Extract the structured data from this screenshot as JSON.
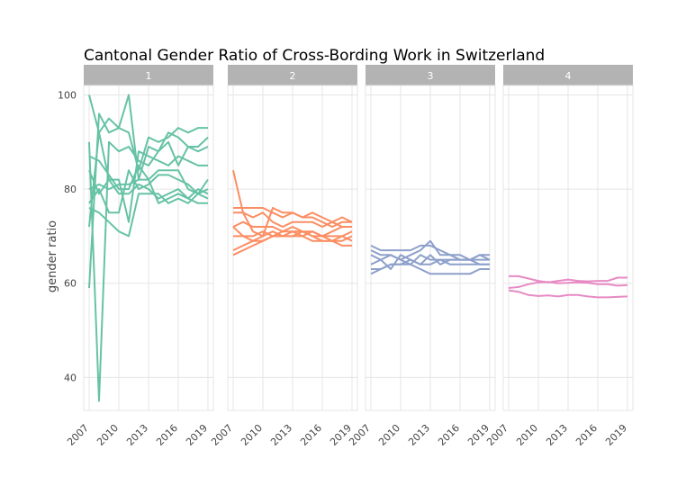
{
  "chart_data": {
    "type": "line",
    "title": "Cantonal Gender Ratio of Cross-Bording Work in Switzerland",
    "ylabel": "gender ratio",
    "xlabel": "",
    "ylim": [
      33,
      102
    ],
    "xlim": [
      2007,
      2019
    ],
    "x_ticks": [
      2007,
      2010,
      2013,
      2016,
      2019
    ],
    "y_ticks": [
      40,
      60,
      80,
      100
    ],
    "x": [
      2007,
      2008,
      2009,
      2010,
      2011,
      2012,
      2013,
      2014,
      2015,
      2016,
      2017,
      2018,
      2019
    ],
    "grid": true,
    "legend": "none",
    "panels": [
      {
        "label": "1",
        "color": "#66c2a5",
        "series": [
          {
            "values": [
              100,
              92,
              95,
              93,
              92,
              84,
              91,
              90,
              91,
              93,
              92,
              93,
              93
            ]
          },
          {
            "values": [
              59,
              96,
              92,
              93,
              100,
              82,
              89,
              88,
              92,
              91,
              89,
              89,
              91
            ]
          },
          {
            "values": [
              90,
              35,
              90,
              88,
              89,
              86,
              85,
              88,
              90,
              85,
              89,
              88,
              89
            ]
          },
          {
            "values": [
              72,
              92,
              82,
              82,
              73,
              88,
              87,
              86,
              85,
              87,
              86,
              85,
              85
            ]
          },
          {
            "values": [
              87,
              86,
              83,
              80,
              80,
              85,
              82,
              84,
              84,
              84,
              80,
              79,
              80
            ]
          },
          {
            "values": [
              77,
              80,
              75,
              75,
              84,
              80,
              81,
              83,
              83,
              82,
              81,
              79,
              82
            ]
          },
          {
            "values": [
              84,
              79,
              82,
              79,
              79,
              81,
              80,
              78,
              79,
              80,
              78,
              80,
              79
            ]
          },
          {
            "values": [
              76,
              75,
              73,
              71,
              70,
              79,
              79,
              79,
              77,
              78,
              77,
              79,
              78
            ]
          },
          {
            "values": [
              80,
              81,
              80,
              81,
              81,
              82,
              82,
              77,
              78,
              79,
              78,
              77,
              77
            ]
          }
        ]
      },
      {
        "label": "2",
        "color": "#fc8d62",
        "series": [
          {
            "values": [
              84,
              75,
              71,
              70,
              76,
              75,
              75,
              74,
              75,
              74,
              73,
              74,
              73
            ]
          },
          {
            "values": [
              76,
              76,
              76,
              76,
              75,
              74,
              75,
              74,
              74,
              73,
              72,
              73,
              73
            ]
          },
          {
            "values": [
              75,
              75,
              74,
              75,
              73,
              72,
              73,
              73,
              73,
              72,
              73,
              72,
              72
            ]
          },
          {
            "values": [
              72,
              73,
              72,
              72,
              72,
              71,
              72,
              71,
              71,
              70,
              71,
              72,
              72
            ]
          },
          {
            "values": [
              70,
              70,
              70,
              71,
              70,
              70,
              70,
              70,
              71,
              70,
              70,
              70,
              71
            ]
          },
          {
            "values": [
              66,
              67,
              68,
              69,
              70,
              71,
              71,
              70,
              69,
              69,
              69,
              69,
              70
            ]
          },
          {
            "values": [
              72,
              70,
              69,
              70,
              71,
              70,
              70,
              71,
              70,
              69,
              69,
              68,
              68
            ]
          },
          {
            "values": [
              67,
              68,
              69,
              69,
              70,
              70,
              71,
              71,
              70,
              70,
              69,
              70,
              69
            ]
          }
        ]
      },
      {
        "label": "3",
        "color": "#8da0cb",
        "series": [
          {
            "values": [
              68,
              67,
              67,
              67,
              67,
              68,
              68,
              67,
              66,
              66,
              65,
              66,
              66
            ]
          },
          {
            "values": [
              67,
              66,
              66,
              65,
              66,
              67,
              69,
              66,
              66,
              65,
              65,
              66,
              65
            ]
          },
          {
            "values": [
              66,
              65,
              66,
              65,
              64,
              66,
              65,
              65,
              65,
              65,
              65,
              65,
              65
            ]
          },
          {
            "values": [
              64,
              65,
              63,
              66,
              65,
              64,
              66,
              64,
              65,
              65,
              65,
              64,
              64
            ]
          },
          {
            "values": [
              63,
              63,
              64,
              64,
              65,
              64,
              64,
              65,
              64,
              64,
              64,
              64,
              64
            ]
          },
          {
            "values": [
              62,
              63,
              64,
              64,
              64,
              63,
              62,
              62,
              62,
              62,
              62,
              63,
              63
            ]
          }
        ]
      },
      {
        "label": "4",
        "color": "#e78ac3",
        "series": [
          {
            "values": [
              61.5,
              61.5,
              61,
              60.5,
              60.2,
              60.5,
              60.8,
              60.5,
              60.4,
              60.5,
              60.5,
              61.2,
              61.2
            ]
          },
          {
            "values": [
              59,
              59.2,
              59.8,
              60.2,
              60.3,
              60,
              60.1,
              60.2,
              60.1,
              59.8,
              59.8,
              59.5,
              59.6
            ]
          },
          {
            "values": [
              58.5,
              58.2,
              57.5,
              57.3,
              57.4,
              57.2,
              57.5,
              57.5,
              57.2,
              57,
              57,
              57.1,
              57.2
            ]
          }
        ]
      }
    ]
  }
}
